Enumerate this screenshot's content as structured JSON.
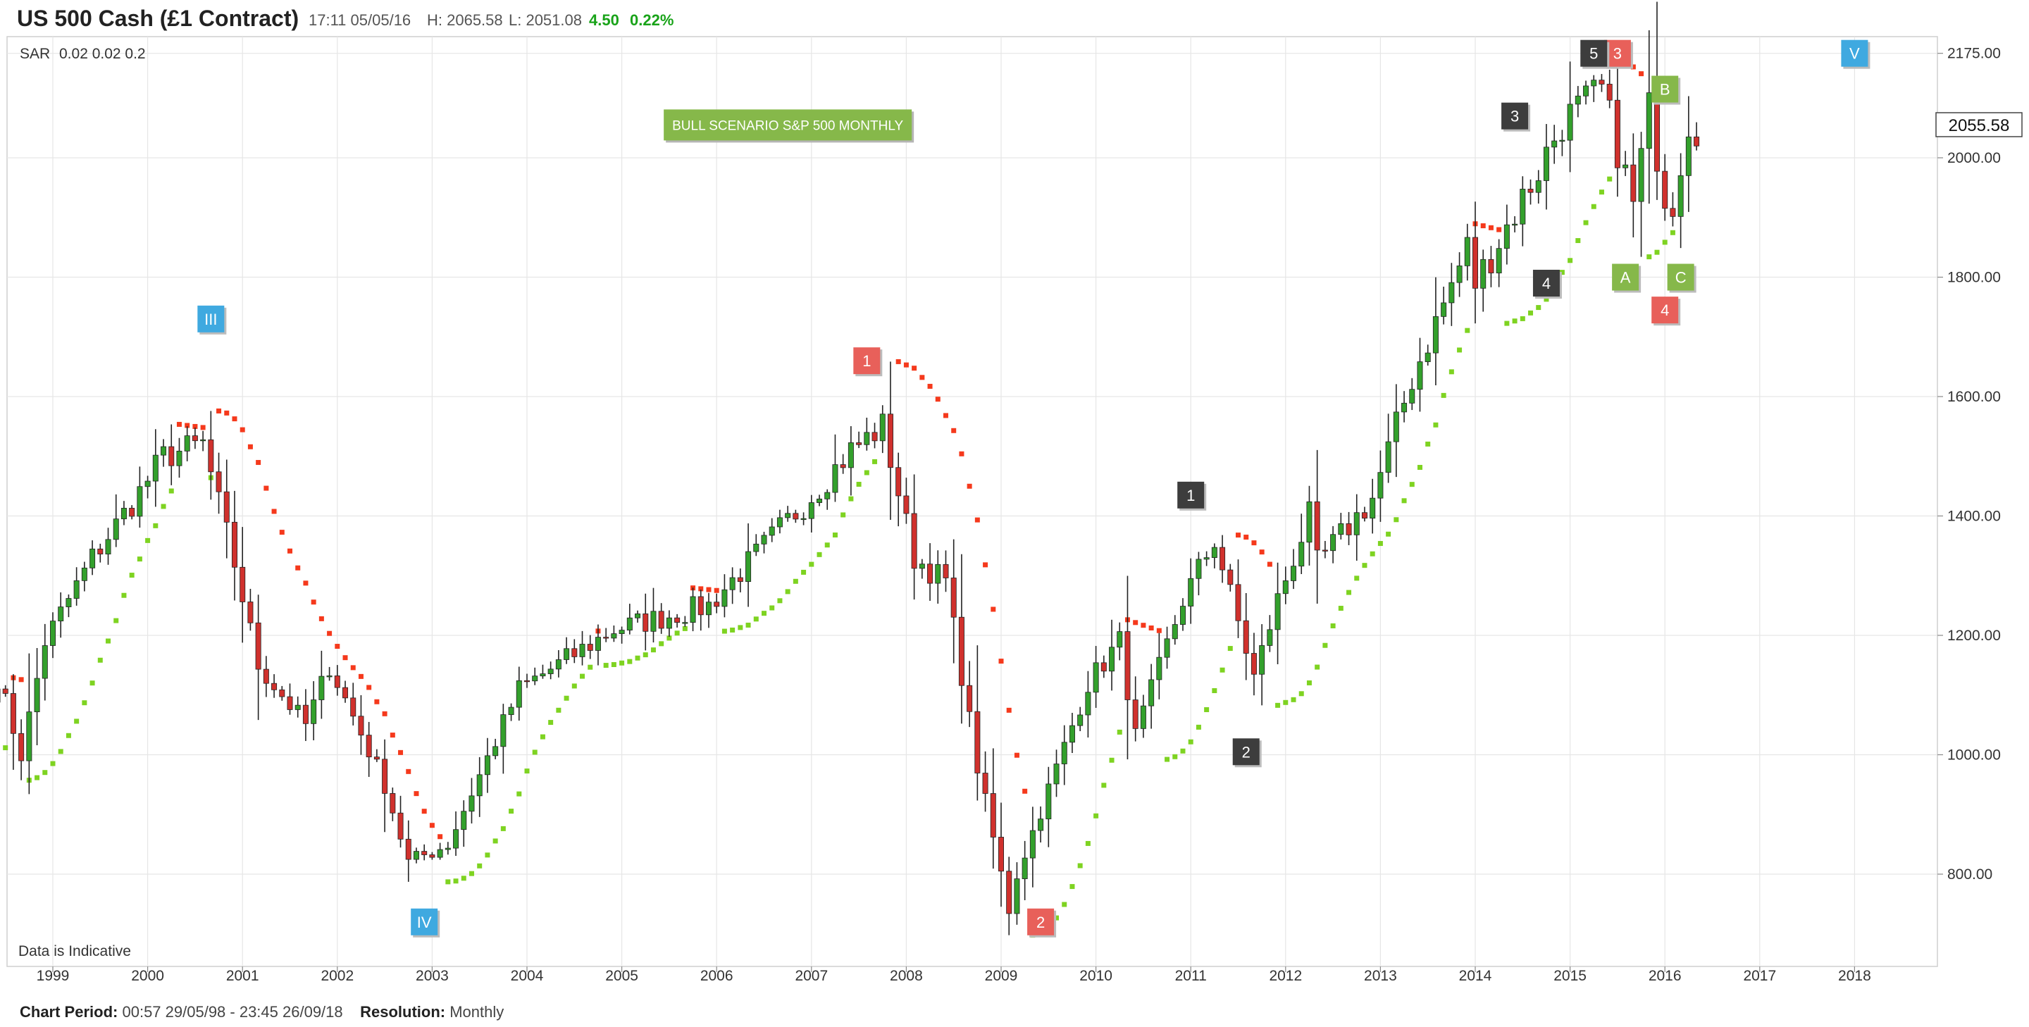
{
  "header": {
    "title": "US 500 Cash (£1 Contract)",
    "datetime": "17:11 05/05/16",
    "high": "H: 2065.58",
    "low": "L: 2051.08",
    "change": "4.50",
    "change_pct": "0.22%"
  },
  "indicator": {
    "name": "SAR",
    "params": "0.02  0.02  0.2"
  },
  "disclaimer": "Data is Indicative",
  "current_price": "2055.58",
  "footer": {
    "period_label": "Chart Period:",
    "period_value": "00:57 29/05/98 - 23:45 26/09/18",
    "resolution_label": "Resolution:",
    "resolution_value": "Monthly"
  },
  "colors": {
    "up": "#33a02c",
    "down": "#d0312d",
    "sar_bull": "#7ed321",
    "sar_bear": "#f5391c",
    "label_dark": "#3d3d3d",
    "label_red": "#e8605a",
    "label_green": "#86b84a",
    "label_blue": "#3fa9e0",
    "grid": "#e6e6e6"
  },
  "chart_data": {
    "type": "candlestick",
    "title": "US 500 Cash (£1 Contract)",
    "x_axis": {
      "type": "date",
      "range": [
        "1998-06",
        "2018-09"
      ],
      "ticks": [
        "1999",
        "2000",
        "2001",
        "2002",
        "2003",
        "2004",
        "2005",
        "2006",
        "2007",
        "2008",
        "2009",
        "2010",
        "2011",
        "2012",
        "2013",
        "2014",
        "2015",
        "2016",
        "2017",
        "2018"
      ]
    },
    "y_axis": {
      "range": [
        660,
        2200
      ],
      "ticks": [
        "800.00",
        "1000.00",
        "1200.00",
        "1400.00",
        "1600.00",
        "1800.00",
        "2000.00",
        "2175.00"
      ],
      "position": "right"
    },
    "grid": true,
    "price_path_monthly": [
      [
        "1998-06",
        1130
      ],
      [
        "1998-09",
        1000
      ],
      [
        "1998-12",
        1190
      ],
      [
        "1999-06",
        1330
      ],
      [
        "1999-12",
        1440
      ],
      [
        "2000-03",
        1500
      ],
      [
        "2000-08",
        1520
      ],
      [
        "2000-12",
        1320
      ],
      [
        "2001-03",
        1150
      ],
      [
        "2001-09",
        1050
      ],
      [
        "2001-12",
        1150
      ],
      [
        "2002-07",
        950
      ],
      [
        "2002-10",
        820
      ],
      [
        "2003-03",
        850
      ],
      [
        "2003-12",
        1110
      ],
      [
        "2004-12",
        1210
      ],
      [
        "2005-12",
        1250
      ],
      [
        "2006-12",
        1420
      ],
      [
        "2007-06",
        1510
      ],
      [
        "2007-10",
        1550
      ],
      [
        "2008-02",
        1330
      ],
      [
        "2008-06",
        1290
      ],
      [
        "2008-10",
        980
      ],
      [
        "2009-02",
        740
      ],
      [
        "2009-03",
        800
      ],
      [
        "2009-12",
        1120
      ],
      [
        "2010-04",
        1190
      ],
      [
        "2010-06",
        1030
      ],
      [
        "2010-12",
        1260
      ],
      [
        "2011-04",
        1360
      ],
      [
        "2011-09",
        1130
      ],
      [
        "2011-12",
        1260
      ],
      [
        "2012-04",
        1400
      ],
      [
        "2012-05",
        1320
      ],
      [
        "2012-12",
        1430
      ],
      [
        "2013-05",
        1630
      ],
      [
        "2013-12",
        1850
      ],
      [
        "2014-01",
        1790
      ],
      [
        "2014-09",
        1980
      ],
      [
        "2014-12",
        2060
      ],
      [
        "2015-05",
        2110
      ],
      [
        "2015-08",
        1970
      ],
      [
        "2015-09",
        1920
      ],
      [
        "2015-11",
        2080
      ],
      [
        "2016-01",
        1940
      ],
      [
        "2016-02",
        1930
      ],
      [
        "2016-04",
        2065
      ],
      [
        "2016-05",
        2055
      ]
    ],
    "annotations": [
      {
        "text": "BULL SCENARIO  S&P 500 MONTHLY",
        "style": "green-box",
        "date": "2006-10",
        "price": 2055
      },
      {
        "text": "III",
        "style": "blue",
        "date": "2000-09",
        "price": 1730
      },
      {
        "text": "IV",
        "style": "blue",
        "date": "2002-12",
        "price": 720
      },
      {
        "text": "V",
        "style": "blue",
        "date": "2018-01",
        "price": 2175
      },
      {
        "text": "1",
        "style": "red",
        "date": "2007-08",
        "price": 1660
      },
      {
        "text": "2",
        "style": "red",
        "date": "2009-06",
        "price": 720
      },
      {
        "text": "3",
        "style": "red",
        "date": "2015-07",
        "price": 2175
      },
      {
        "text": "4",
        "style": "red",
        "date": "2016-01",
        "price": 1745
      },
      {
        "text": "1",
        "style": "dark",
        "date": "2011-01",
        "price": 1435
      },
      {
        "text": "2",
        "style": "dark",
        "date": "2011-08",
        "price": 1005
      },
      {
        "text": "3",
        "style": "dark",
        "date": "2014-06",
        "price": 2070
      },
      {
        "text": "4",
        "style": "dark",
        "date": "2014-10",
        "price": 1790
      },
      {
        "text": "5",
        "style": "dark",
        "date": "2015-04",
        "price": 2175
      },
      {
        "text": "A",
        "style": "green",
        "date": "2015-08",
        "price": 1800
      },
      {
        "text": "B",
        "style": "green",
        "date": "2016-01",
        "price": 2115
      },
      {
        "text": "C",
        "style": "green",
        "date": "2016-03",
        "price": 1800
      }
    ]
  }
}
